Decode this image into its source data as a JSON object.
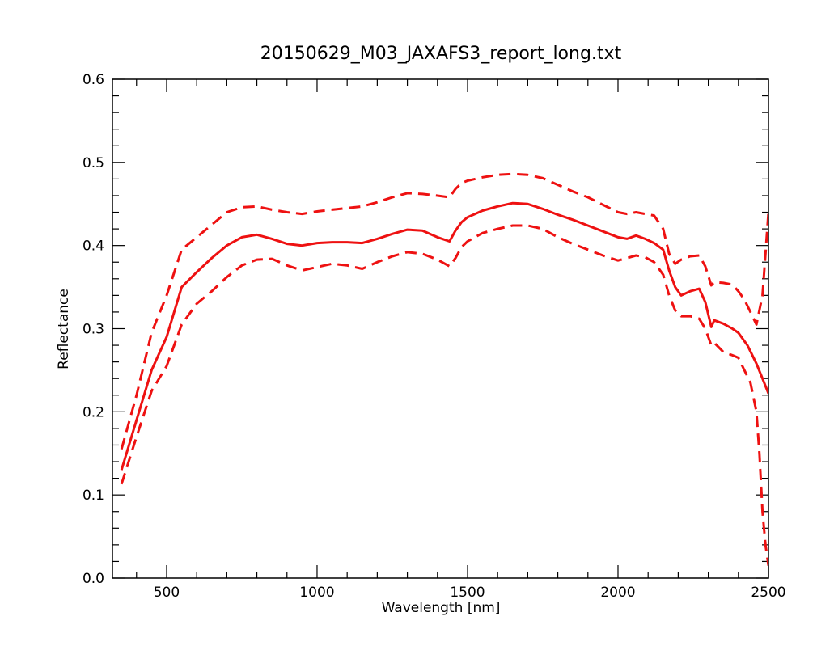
{
  "chart_data": {
    "type": "line",
    "title": "20150629_M03_JAXAFS3_report_long.txt",
    "xlabel": "Wavelength [nm]",
    "ylabel": "Reflectance",
    "xlim": [
      320,
      2500
    ],
    "ylim": [
      0.0,
      0.6
    ],
    "x_ticks": [
      500,
      1000,
      1500,
      2000,
      2500
    ],
    "x_tick_labels": [
      "500",
      "1000",
      "1500",
      "2000",
      "2500"
    ],
    "y_ticks": [
      0.0,
      0.1,
      0.2,
      0.3,
      0.4,
      0.5,
      0.6
    ],
    "y_tick_labels": [
      "0.0",
      "0.1",
      "0.2",
      "0.3",
      "0.4",
      "0.5",
      "0.6"
    ],
    "grid": false,
    "legend": "none",
    "colors": {
      "series": "#ee1111",
      "axes": "#000000"
    },
    "series": [
      {
        "style": "solid",
        "x": [
          350,
          400,
          450,
          500,
          550,
          600,
          650,
          700,
          750,
          800,
          850,
          900,
          950,
          1000,
          1050,
          1100,
          1150,
          1200,
          1250,
          1300,
          1350,
          1400,
          1440,
          1460,
          1480,
          1500,
          1550,
          1600,
          1650,
          1700,
          1750,
          1800,
          1850,
          1900,
          1950,
          2000,
          2030,
          2060,
          2090,
          2120,
          2150,
          2170,
          2190,
          2210,
          2240,
          2270,
          2290,
          2310,
          2320,
          2350,
          2380,
          2400,
          2430,
          2460,
          2480,
          2500
        ],
        "y": [
          0.13,
          0.19,
          0.25,
          0.29,
          0.35,
          0.368,
          0.385,
          0.4,
          0.41,
          0.413,
          0.408,
          0.402,
          0.4,
          0.403,
          0.404,
          0.404,
          0.403,
          0.408,
          0.414,
          0.419,
          0.418,
          0.41,
          0.405,
          0.418,
          0.428,
          0.434,
          0.442,
          0.447,
          0.451,
          0.45,
          0.444,
          0.437,
          0.431,
          0.424,
          0.417,
          0.41,
          0.408,
          0.412,
          0.408,
          0.403,
          0.395,
          0.37,
          0.35,
          0.34,
          0.345,
          0.348,
          0.332,
          0.302,
          0.31,
          0.306,
          0.3,
          0.295,
          0.28,
          0.258,
          0.24,
          0.222
        ]
      },
      {
        "style": "dashed",
        "x": [
          350,
          400,
          450,
          500,
          550,
          600,
          650,
          700,
          750,
          800,
          850,
          900,
          950,
          1000,
          1050,
          1100,
          1150,
          1200,
          1250,
          1300,
          1350,
          1400,
          1440,
          1460,
          1480,
          1500,
          1550,
          1600,
          1650,
          1700,
          1750,
          1800,
          1850,
          1900,
          1950,
          2000,
          2030,
          2060,
          2090,
          2120,
          2150,
          2170,
          2190,
          2210,
          2240,
          2270,
          2290,
          2310,
          2320,
          2350,
          2380,
          2400,
          2420,
          2440,
          2460,
          2480,
          2500
        ],
        "y": [
          0.155,
          0.22,
          0.295,
          0.34,
          0.395,
          0.41,
          0.425,
          0.44,
          0.446,
          0.447,
          0.443,
          0.44,
          0.438,
          0.441,
          0.443,
          0.445,
          0.447,
          0.452,
          0.458,
          0.463,
          0.462,
          0.46,
          0.458,
          0.468,
          0.475,
          0.478,
          0.482,
          0.485,
          0.486,
          0.485,
          0.481,
          0.473,
          0.465,
          0.458,
          0.449,
          0.44,
          0.438,
          0.44,
          0.438,
          0.436,
          0.42,
          0.39,
          0.378,
          0.383,
          0.387,
          0.388,
          0.375,
          0.352,
          0.356,
          0.355,
          0.353,
          0.345,
          0.335,
          0.32,
          0.305,
          0.34,
          0.44
        ]
      },
      {
        "style": "dashed",
        "x": [
          350,
          400,
          450,
          500,
          550,
          600,
          650,
          700,
          750,
          800,
          850,
          900,
          950,
          1000,
          1050,
          1100,
          1150,
          1200,
          1250,
          1300,
          1350,
          1400,
          1440,
          1460,
          1480,
          1500,
          1550,
          1600,
          1650,
          1700,
          1750,
          1800,
          1850,
          1900,
          1950,
          2000,
          2030,
          2060,
          2090,
          2120,
          2150,
          2170,
          2190,
          2210,
          2240,
          2270,
          2290,
          2310,
          2320,
          2350,
          2380,
          2400,
          2420,
          2440,
          2460,
          2470,
          2480,
          2490,
          2500
        ],
        "y": [
          0.113,
          0.17,
          0.225,
          0.255,
          0.305,
          0.33,
          0.345,
          0.362,
          0.376,
          0.383,
          0.384,
          0.376,
          0.37,
          0.374,
          0.378,
          0.376,
          0.372,
          0.38,
          0.387,
          0.392,
          0.39,
          0.383,
          0.375,
          0.385,
          0.398,
          0.405,
          0.415,
          0.42,
          0.424,
          0.424,
          0.42,
          0.41,
          0.402,
          0.395,
          0.388,
          0.382,
          0.385,
          0.388,
          0.386,
          0.38,
          0.365,
          0.34,
          0.322,
          0.315,
          0.315,
          0.312,
          0.3,
          0.28,
          0.283,
          0.272,
          0.268,
          0.265,
          0.25,
          0.235,
          0.2,
          0.15,
          0.08,
          0.04,
          0.015
        ]
      }
    ]
  }
}
